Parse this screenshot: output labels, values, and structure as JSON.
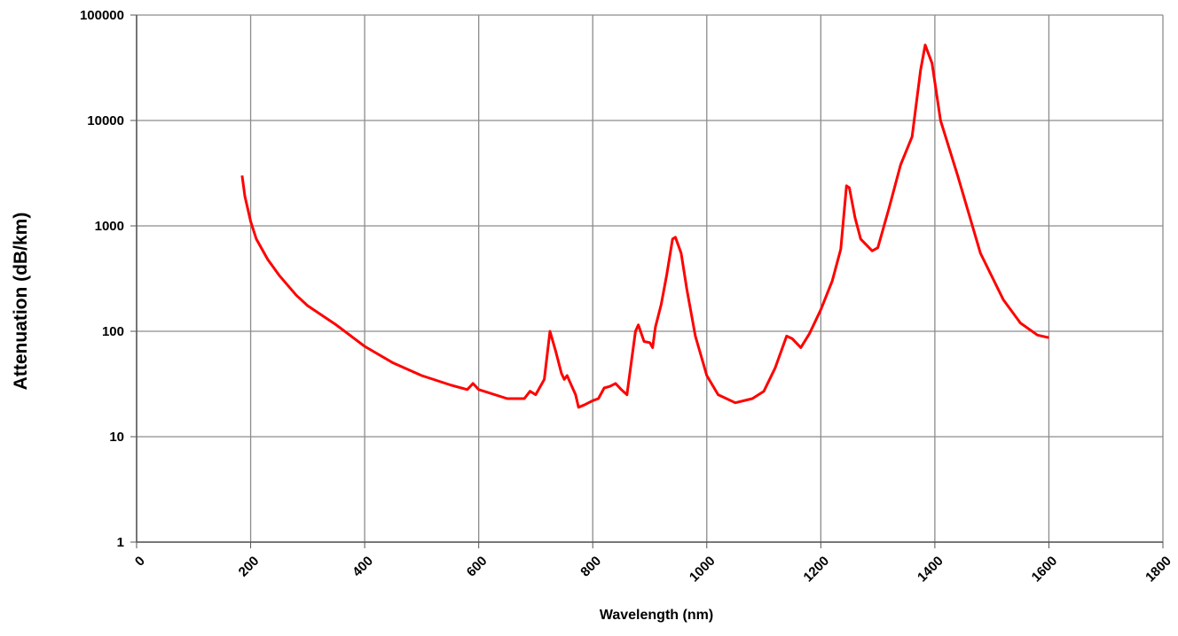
{
  "chart_data": {
    "type": "line",
    "x_label": "Wavelength (nm)",
    "y_label": "Attenuation (dB/km)",
    "x": [
      185,
      190,
      200,
      210,
      230,
      250,
      280,
      300,
      350,
      400,
      450,
      500,
      550,
      580,
      590,
      600,
      650,
      680,
      690,
      700,
      715,
      725,
      735,
      745,
      750,
      755,
      760,
      770,
      775,
      785,
      800,
      810,
      820,
      830,
      840,
      850,
      860,
      865,
      875,
      880,
      890,
      900,
      905,
      910,
      920,
      930,
      940,
      945,
      955,
      965,
      980,
      1000,
      1020,
      1050,
      1080,
      1100,
      1120,
      1140,
      1150,
      1165,
      1180,
      1200,
      1220,
      1235,
      1245,
      1250,
      1260,
      1270,
      1290,
      1300,
      1320,
      1340,
      1360,
      1375,
      1383,
      1395,
      1410,
      1440,
      1480,
      1520,
      1550,
      1580,
      1600
    ],
    "values": [
      3000,
      1900,
      1100,
      750,
      480,
      340,
      220,
      175,
      115,
      72,
      50,
      38,
      31,
      28,
      32,
      28,
      23,
      23,
      27,
      25,
      35,
      100,
      65,
      40,
      35,
      38,
      33,
      25,
      19,
      20,
      22,
      23,
      29,
      30,
      32,
      28,
      25,
      40,
      100,
      115,
      80,
      78,
      70,
      110,
      180,
      350,
      750,
      780,
      550,
      250,
      90,
      38,
      25,
      21,
      23,
      27,
      45,
      90,
      85,
      70,
      95,
      160,
      300,
      600,
      2400,
      2300,
      1200,
      750,
      580,
      620,
      1500,
      3800,
      7000,
      30000,
      52000,
      35000,
      10000,
      3000,
      550,
      200,
      120,
      92,
      87
    ],
    "color": "#ff0000",
    "xlim": [
      0,
      1800
    ],
    "xticks": [
      0,
      200,
      400,
      600,
      800,
      1000,
      1200,
      1400,
      1600,
      1800
    ],
    "ylim": [
      1,
      100000
    ],
    "yticks": [
      1,
      10,
      100,
      1000,
      10000,
      100000
    ],
    "log_y": true,
    "grid": true
  }
}
